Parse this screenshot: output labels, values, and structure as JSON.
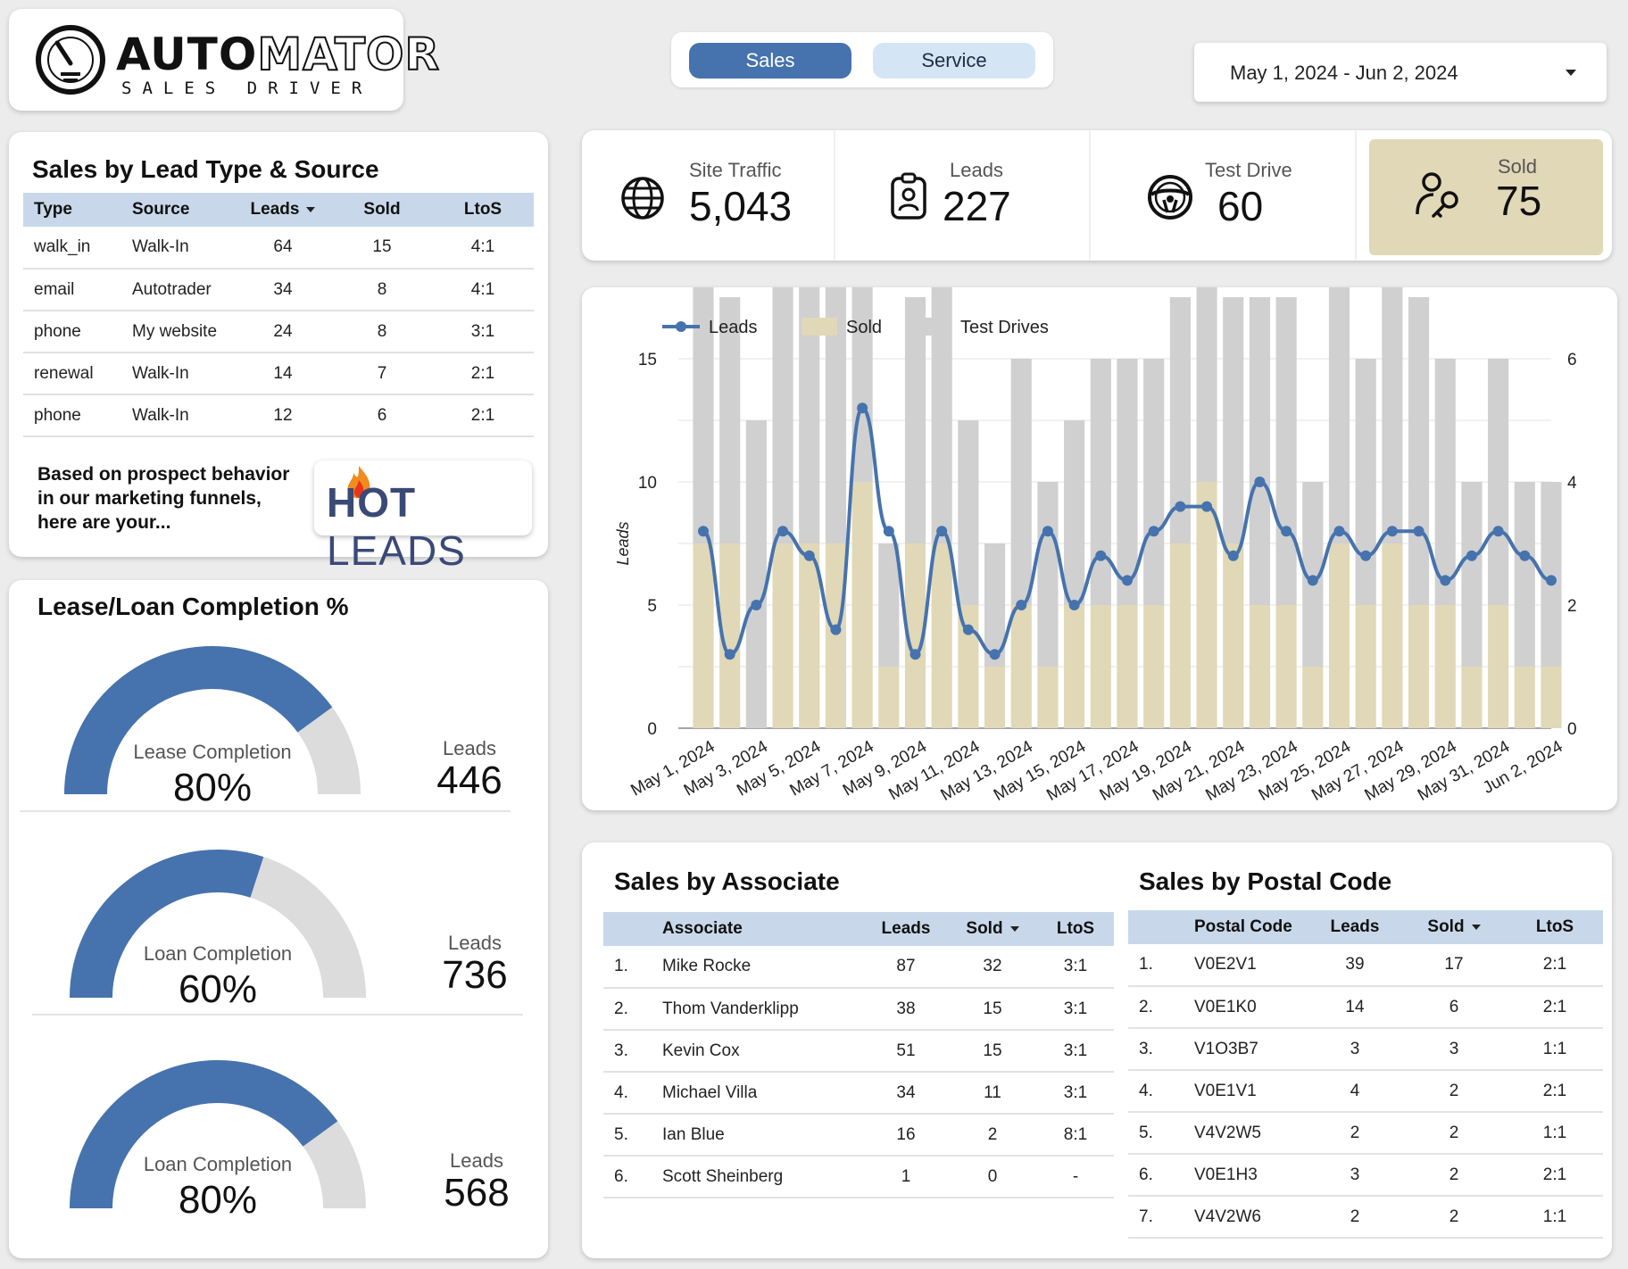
{
  "brand": {
    "word1": "AUTO",
    "word2": "MATOR",
    "subtitle": "SALES DRIVER"
  },
  "tabs": [
    {
      "label": "Sales"
    },
    {
      "label": "Service"
    }
  ],
  "date_range": {
    "value": "May 1, 2024 - Jun 2, 2024"
  },
  "lead_table": {
    "title": "Sales by Lead Type & Source",
    "columns": [
      "Type",
      "Source",
      "Leads",
      "Sold",
      "LtoS"
    ],
    "rows": [
      [
        "walk_in",
        "Walk-In",
        "64",
        "15",
        "4:1"
      ],
      [
        "email",
        "Autotrader",
        "34",
        "8",
        "4:1"
      ],
      [
        "phone",
        "My website",
        "24",
        "8",
        "3:1"
      ],
      [
        "renewal",
        "Walk-In",
        "14",
        "7",
        "2:1"
      ],
      [
        "phone",
        "Walk-In",
        "12",
        "6",
        "2:1"
      ]
    ],
    "promo_text": "Based on prospect behavior in our marketing funnels, here are your...",
    "hot_leads": {
      "word1": "HOT",
      "word2": "LEADS"
    }
  },
  "gauges": {
    "title": "Lease/Loan Completion %",
    "items": [
      {
        "label": "Lease Completion",
        "percent": "80%",
        "fraction": 0.8,
        "leads_label": "Leads",
        "leads": "446"
      },
      {
        "label": "Loan Completion",
        "percent": "60%",
        "fraction": 0.6,
        "leads_label": "Leads",
        "leads": "736"
      },
      {
        "label": "Loan Completion",
        "percent": "80%",
        "fraction": 0.8,
        "leads_label": "Leads",
        "leads": "568"
      }
    ]
  },
  "kpis": [
    {
      "label": "Site Traffic",
      "value": "5,043",
      "icon": "globe-icon"
    },
    {
      "label": "Leads",
      "value": "227",
      "icon": "clipboard-person-icon"
    },
    {
      "label": "Test Drive",
      "value": "60",
      "icon": "steering-wheel-icon"
    },
    {
      "label": "Sold",
      "value": "75",
      "icon": "person-key-icon"
    }
  ],
  "colors": {
    "accent": "#4673ad",
    "sold": "#e1d8b7",
    "test_drives": "#d0d0d0",
    "header": "#c8d8ea"
  },
  "chart_data": {
    "type": "bar+line",
    "legend": [
      "Leads",
      "Sold",
      "Test Drives"
    ],
    "ylabel": "Leads",
    "ylim_left": [
      0,
      15
    ],
    "yticks_left": [
      0,
      5,
      10,
      15
    ],
    "ylim_right": [
      0,
      6
    ],
    "yticks_right": [
      0,
      2,
      4,
      6
    ],
    "x_tick_labels": [
      "May 1, 2024",
      "May 3, 2024",
      "May 5, 2024",
      "May 7, 2024",
      "May 9, 2024",
      "May 11, 2024",
      "May 13, 2024",
      "May 15, 2024",
      "May 17, 2024",
      "May 19, 2024",
      "May 21, 2024",
      "May 23, 2024",
      "May 25, 2024",
      "May 27, 2024",
      "May 29, 2024",
      "May 31, 2024",
      "Jun 2, 2024"
    ],
    "series": [
      {
        "name": "Leads",
        "axis": "left",
        "values": [
          8,
          3,
          5,
          8,
          7,
          4,
          13,
          8,
          3,
          8,
          4,
          3,
          5,
          8,
          5,
          7,
          6,
          8,
          9,
          9,
          7,
          10,
          8,
          6,
          8,
          7,
          8,
          8,
          6,
          7,
          8,
          7,
          6
        ]
      },
      {
        "name": "Sold",
        "axis": "right",
        "values": [
          3,
          3,
          0,
          3,
          3,
          3,
          4,
          1,
          3,
          3,
          2,
          1,
          2,
          1,
          2,
          2,
          2,
          2,
          3,
          4,
          3,
          2,
          2,
          1,
          3,
          2,
          3,
          2,
          2,
          1,
          2,
          1,
          1
        ]
      },
      {
        "name": "Test Drives",
        "axis": "right",
        "values": [
          5,
          4,
          5,
          6,
          5,
          5,
          4,
          2,
          4,
          5,
          3,
          2,
          4,
          3,
          3,
          4,
          4,
          4,
          4,
          6,
          4,
          5,
          5,
          3,
          5,
          4,
          5,
          5,
          4,
          3,
          4,
          3,
          3
        ]
      }
    ]
  },
  "associates": {
    "title": "Sales by Associate",
    "columns": [
      "",
      "Associate",
      "Leads",
      "Sold",
      "LtoS"
    ],
    "rows": [
      [
        "1.",
        "Mike Rocke",
        "87",
        "32",
        "3:1"
      ],
      [
        "2.",
        "Thom Vanderklipp",
        "38",
        "15",
        "3:1"
      ],
      [
        "3.",
        "Kevin Cox",
        "51",
        "15",
        "3:1"
      ],
      [
        "4.",
        "Michael Villa",
        "34",
        "11",
        "3:1"
      ],
      [
        "5.",
        "Ian Blue",
        "16",
        "2",
        "8:1"
      ],
      [
        "6.",
        "Scott Sheinberg",
        "1",
        "0",
        "-"
      ]
    ]
  },
  "postal": {
    "title": "Sales by Postal Code",
    "columns": [
      "",
      "Postal Code",
      "Leads",
      "Sold",
      "LtoS"
    ],
    "rows": [
      [
        "1.",
        "V0E2V1",
        "39",
        "17",
        "2:1"
      ],
      [
        "2.",
        "V0E1K0",
        "14",
        "6",
        "2:1"
      ],
      [
        "3.",
        "V1O3B7",
        "3",
        "3",
        "1:1"
      ],
      [
        "4.",
        "V0E1V1",
        "4",
        "2",
        "2:1"
      ],
      [
        "5.",
        "V4V2W5",
        "2",
        "2",
        "1:1"
      ],
      [
        "6.",
        "V0E1H3",
        "3",
        "2",
        "2:1"
      ],
      [
        "7.",
        "V4V2W6",
        "2",
        "2",
        "1:1"
      ]
    ]
  }
}
